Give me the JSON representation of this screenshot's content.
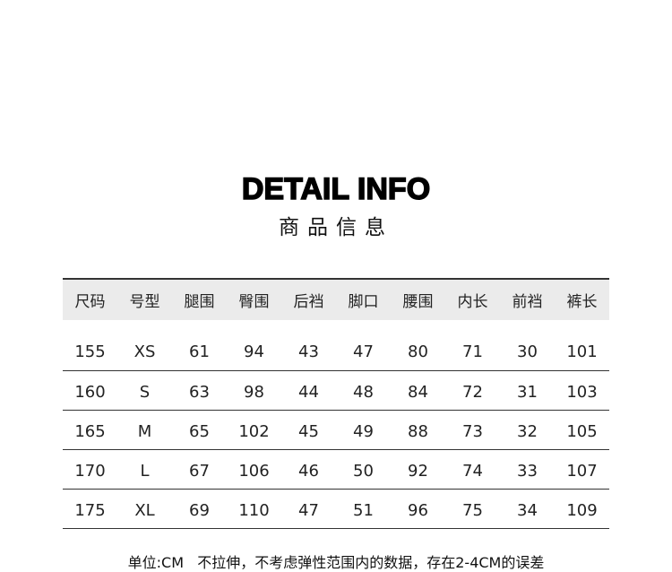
{
  "title": "DETAIL INFO",
  "subtitle": "商品信息",
  "table": {
    "headers": [
      "尺码",
      "号型",
      "腿围",
      "臀围",
      "后裆",
      "脚口",
      "腰围",
      "内长",
      "前裆",
      "裤长"
    ],
    "rows": [
      [
        "155",
        "XS",
        "61",
        "94",
        "43",
        "47",
        "80",
        "71",
        "30",
        "101"
      ],
      [
        "160",
        "S",
        "63",
        "98",
        "44",
        "48",
        "84",
        "72",
        "31",
        "103"
      ],
      [
        "165",
        "M",
        "65",
        "102",
        "45",
        "49",
        "88",
        "73",
        "32",
        "105"
      ],
      [
        "170",
        "L",
        "67",
        "106",
        "46",
        "50",
        "92",
        "74",
        "33",
        "107"
      ],
      [
        "175",
        "XL",
        "69",
        "110",
        "47",
        "51",
        "96",
        "75",
        "34",
        "109"
      ]
    ]
  },
  "note": "单位:CM   不拉伸，不考虑弹性范围内的数据，存在2-4CM的误差"
}
